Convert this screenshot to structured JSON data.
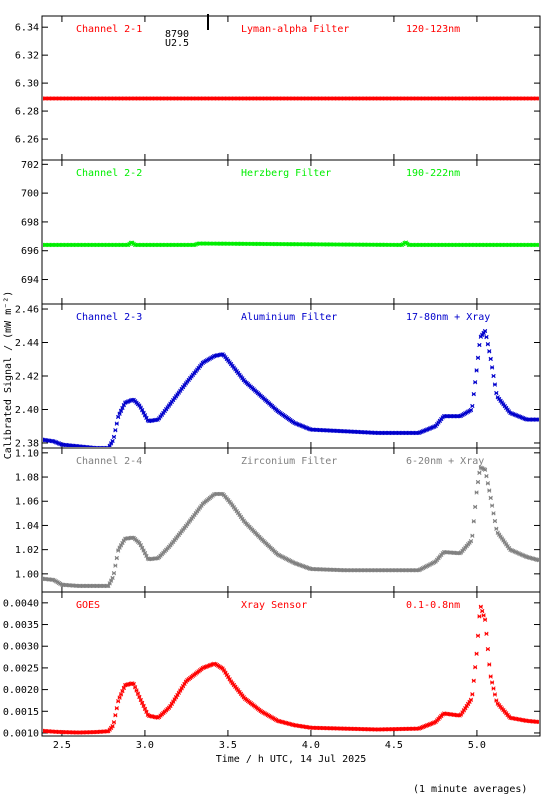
{
  "figure": {
    "xlabel": "Time / h UTC, 14 Jul 2025",
    "ylabel": "Calibrated Signal / (mW m⁻²)",
    "footnote": "(1 minute averages)",
    "annotation_lines": [
      "8790",
      "U2.5"
    ]
  },
  "chart_data": [
    {
      "type": "scatter",
      "name": "Channel 2-1",
      "filter": "Lyman-alpha Filter",
      "range": "120-123nm",
      "color": "#ff0000",
      "ylim": [
        6.245,
        6.348
      ],
      "yticks": [
        6.26,
        6.28,
        6.3,
        6.32,
        6.34
      ],
      "ytick_labels": [
        "6.26",
        "6.28",
        "6.30",
        "6.32",
        "6.34"
      ],
      "x": [
        2.38,
        5.38
      ],
      "y": [
        6.289,
        6.289
      ]
    },
    {
      "type": "scatter",
      "name": "Channel 2-2",
      "filter": "Herzberg Filter",
      "range": "190-222nm",
      "color": "#00ee00",
      "ylim": [
        692.3,
        702.3
      ],
      "yticks": [
        694,
        696,
        698,
        700,
        702
      ],
      "ytick_labels": [
        "694",
        "696",
        "698",
        "700",
        "702"
      ],
      "x": [
        2.38,
        2.9,
        2.92,
        2.94,
        3.3,
        3.32,
        4.55,
        4.57,
        4.59,
        5.38
      ],
      "y": [
        696.4,
        696.4,
        696.6,
        696.4,
        696.4,
        696.5,
        696.4,
        696.6,
        696.4,
        696.4
      ]
    },
    {
      "type": "scatter",
      "name": "Channel 2-3",
      "filter": "Aluminium Filter",
      "range": "17-80nm + Xray",
      "color": "#0000cc",
      "ylim": [
        2.377,
        2.463
      ],
      "yticks": [
        2.38,
        2.4,
        2.42,
        2.44,
        2.46
      ],
      "ytick_labels": [
        "2.38",
        "2.40",
        "2.42",
        "2.44",
        "2.46"
      ],
      "x": [
        2.38,
        2.45,
        2.5,
        2.6,
        2.7,
        2.78,
        2.81,
        2.84,
        2.88,
        2.93,
        2.97,
        3.02,
        3.08,
        3.15,
        3.25,
        3.35,
        3.42,
        3.47,
        3.52,
        3.6,
        3.7,
        3.8,
        3.9,
        4.0,
        4.2,
        4.4,
        4.65,
        4.75,
        4.8,
        4.9,
        4.97,
        5.0,
        5.02,
        5.05,
        5.08,
        5.12,
        5.2,
        5.3,
        5.38
      ],
      "y": [
        2.382,
        2.381,
        2.379,
        2.378,
        2.377,
        2.377,
        2.382,
        2.396,
        2.404,
        2.406,
        2.402,
        2.393,
        2.394,
        2.403,
        2.416,
        2.428,
        2.432,
        2.433,
        2.427,
        2.417,
        2.408,
        2.399,
        2.392,
        2.388,
        2.387,
        2.386,
        2.386,
        2.39,
        2.396,
        2.396,
        2.4,
        2.425,
        2.443,
        2.447,
        2.432,
        2.408,
        2.398,
        2.394,
        2.394
      ]
    },
    {
      "type": "scatter",
      "name": "Channel 2-4",
      "filter": "Zirconium Filter",
      "range": "6-20nm + Xray",
      "color": "#808080",
      "ylim": [
        0.985,
        1.104
      ],
      "yticks": [
        1.0,
        1.02,
        1.04,
        1.06,
        1.08,
        1.1
      ],
      "ytick_labels": [
        "1.00",
        "1.02",
        "1.04",
        "1.06",
        "1.08",
        "1.10"
      ],
      "x": [
        2.38,
        2.45,
        2.5,
        2.6,
        2.7,
        2.78,
        2.81,
        2.84,
        2.88,
        2.93,
        2.97,
        3.02,
        3.08,
        3.15,
        3.25,
        3.35,
        3.42,
        3.47,
        3.52,
        3.6,
        3.7,
        3.8,
        3.9,
        4.0,
        4.2,
        4.4,
        4.65,
        4.75,
        4.8,
        4.9,
        4.97,
        5.0,
        5.02,
        5.05,
        5.08,
        5.12,
        5.2,
        5.3,
        5.38
      ],
      "y": [
        0.996,
        0.995,
        0.991,
        0.99,
        0.99,
        0.99,
        0.998,
        1.02,
        1.029,
        1.03,
        1.025,
        1.012,
        1.013,
        1.023,
        1.04,
        1.058,
        1.066,
        1.066,
        1.058,
        1.043,
        1.029,
        1.016,
        1.009,
        1.004,
        1.003,
        1.003,
        1.003,
        1.01,
        1.018,
        1.017,
        1.028,
        1.07,
        1.088,
        1.086,
        1.065,
        1.035,
        1.02,
        1.014,
        1.011
      ]
    },
    {
      "type": "scatter",
      "name": "GOES",
      "filter": "Xray Sensor",
      "range": "0.1-0.8nm",
      "color": "#ff0000",
      "ylim": [
        0.00093,
        0.00425
      ],
      "yticks": [
        0.001,
        0.0015,
        0.002,
        0.0025,
        0.003,
        0.0035,
        0.004
      ],
      "ytick_labels": [
        "0.0010",
        "0.0015",
        "0.0020",
        "0.0025",
        "0.0030",
        "0.0035",
        "0.0040"
      ],
      "x": [
        2.38,
        2.45,
        2.5,
        2.6,
        2.7,
        2.78,
        2.81,
        2.84,
        2.88,
        2.93,
        2.97,
        3.02,
        3.08,
        3.15,
        3.25,
        3.35,
        3.42,
        3.47,
        3.52,
        3.6,
        3.7,
        3.8,
        3.9,
        4.0,
        4.2,
        4.4,
        4.65,
        4.75,
        4.8,
        4.9,
        4.97,
        5.0,
        5.02,
        5.05,
        5.08,
        5.12,
        5.2,
        5.3,
        5.38
      ],
      "y": [
        0.00105,
        0.00103,
        0.00102,
        0.00101,
        0.00102,
        0.00104,
        0.00118,
        0.00175,
        0.0021,
        0.00215,
        0.0018,
        0.0014,
        0.00135,
        0.0016,
        0.0022,
        0.0025,
        0.0026,
        0.00248,
        0.00218,
        0.0018,
        0.0015,
        0.00128,
        0.00118,
        0.00112,
        0.0011,
        0.00108,
        0.0011,
        0.00125,
        0.00145,
        0.0014,
        0.0018,
        0.0029,
        0.00395,
        0.0036,
        0.00235,
        0.0017,
        0.00135,
        0.00128,
        0.00125
      ]
    }
  ],
  "xaxis": {
    "xlim": [
      2.38,
      5.38
    ],
    "xticks": [
      2.5,
      3.0,
      3.5,
      4.0,
      4.5,
      5.0
    ],
    "xtick_labels": [
      "2.5",
      "3.0",
      "3.5",
      "4.0",
      "4.5",
      "5.0"
    ]
  }
}
